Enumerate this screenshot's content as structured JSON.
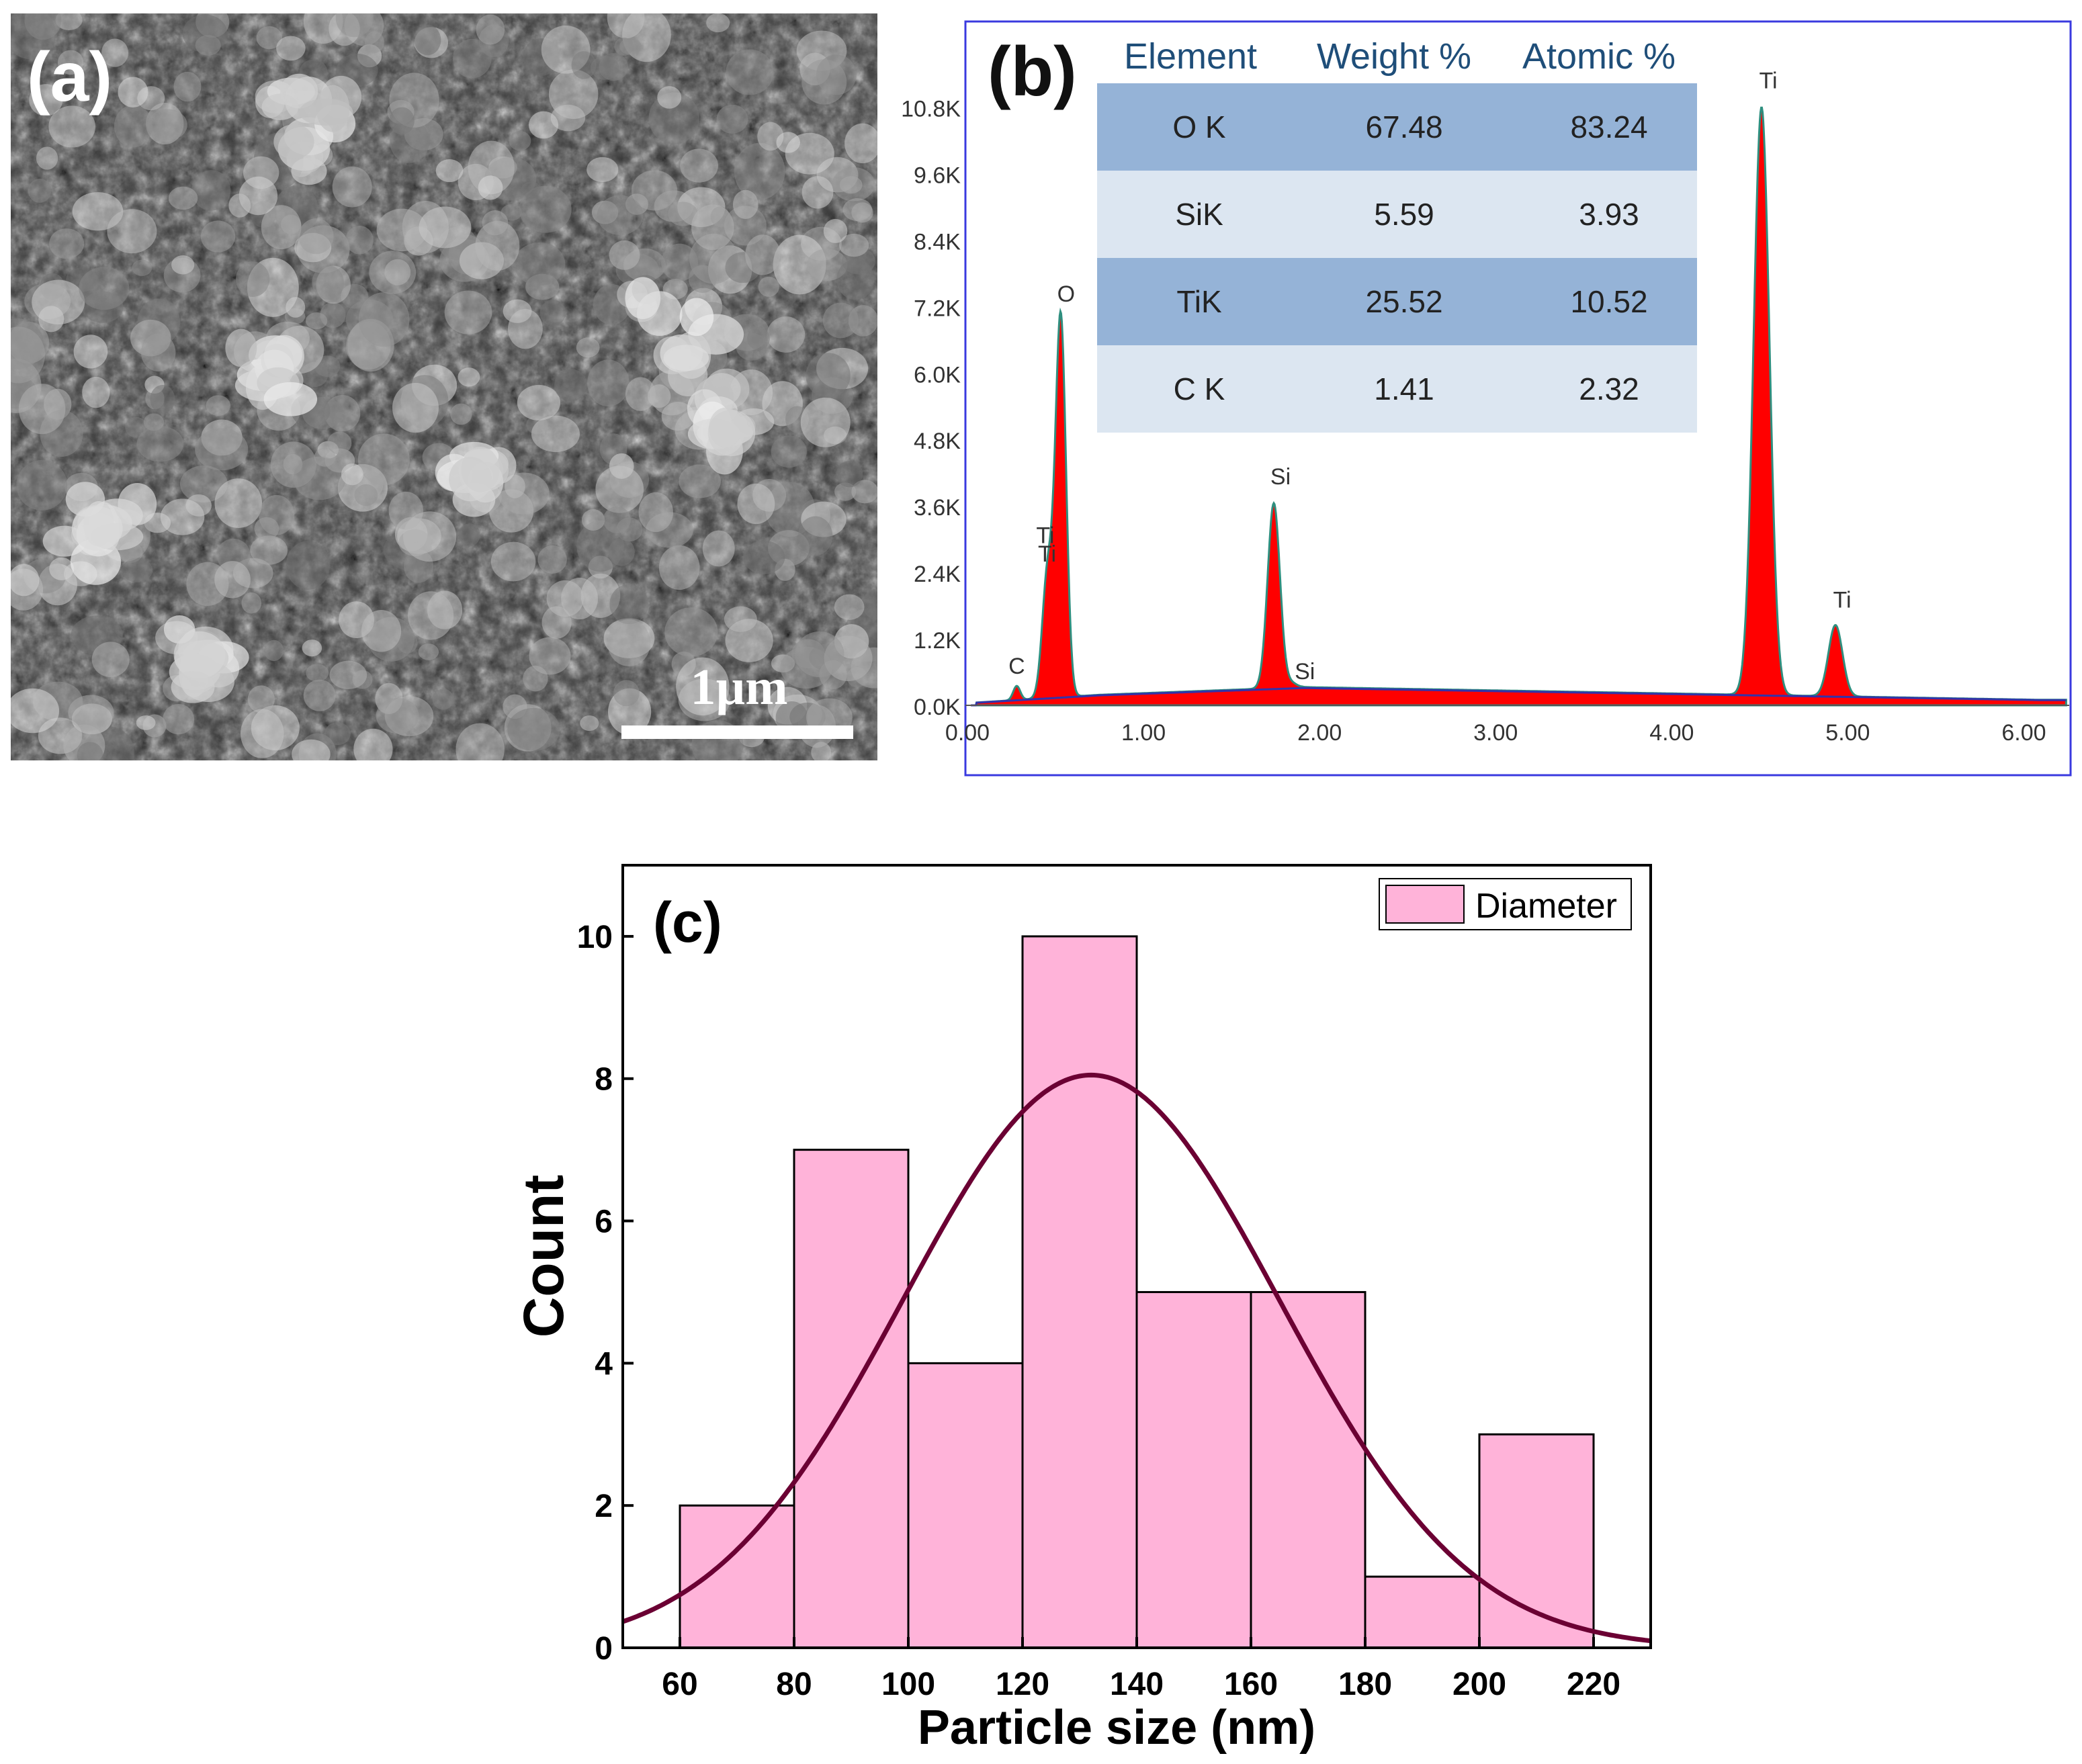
{
  "panel_a": {
    "label": "(a)",
    "scale_bar_text": "1µm",
    "image_description_icon": "sem-micrograph"
  },
  "panel_b": {
    "label": "(b)",
    "table": {
      "headers": [
        "Element",
        "Weight %",
        "Atomic %"
      ],
      "rows": [
        [
          "O K",
          "67.48",
          "83.24"
        ],
        [
          "SiK",
          "5.59",
          "3.93"
        ],
        [
          "TiK",
          "25.52",
          "10.52"
        ],
        [
          "C K",
          "1.41",
          "2.32"
        ]
      ]
    },
    "colors": {
      "fill": "#ff0000",
      "header_row": "#95b3d7",
      "light_row": "#dce6f1",
      "header_text": "#1f4e79",
      "frame": "#3a3adf",
      "background_line": "#3333aa"
    }
  },
  "chart_data": [
    {
      "type": "area",
      "title": "",
      "xlabel": "",
      "ylabel": "",
      "xlim": [
        0.0,
        6.25
      ],
      "ylim": [
        0.0,
        11.4
      ],
      "x_ticks": [
        "0.00",
        "1.00",
        "2.00",
        "3.00",
        "4.00",
        "5.00",
        "6.00"
      ],
      "y_ticks": [
        "0.0K",
        "1.2K",
        "2.4K",
        "3.6K",
        "4.8K",
        "6.0K",
        "7.2K",
        "8.4K",
        "9.6K",
        "10.8K"
      ],
      "y_tick_values": [
        0,
        1.2,
        2.4,
        3.6,
        4.8,
        6.0,
        7.2,
        8.4,
        9.6,
        10.8
      ],
      "x_tick_values": [
        0,
        1,
        2,
        3,
        4,
        5,
        6
      ],
      "peaks": [
        {
          "label": "C",
          "x": 0.28,
          "y": 0.35
        },
        {
          "label": "Ti",
          "x": 0.45,
          "y": 2.3
        },
        {
          "label": "Ti",
          "x": 0.46,
          "y": 2.5
        },
        {
          "label": "O",
          "x": 0.53,
          "y": 7.0
        },
        {
          "label": "Si",
          "x": 1.74,
          "y": 3.65
        },
        {
          "label": "Si",
          "x": 1.84,
          "y": 0.4
        },
        {
          "label": "Ti",
          "x": 4.51,
          "y": 10.8
        },
        {
          "label": "Ti",
          "x": 4.93,
          "y": 1.45
        }
      ],
      "peak_labels": [
        "C",
        "Ti",
        "Ti",
        "O",
        "Si",
        "Si",
        "Ti",
        "Ti"
      ]
    },
    {
      "type": "bar",
      "title": "(c)",
      "xlabel": "Particle size (nm)",
      "ylabel": "Count",
      "xlim": [
        50,
        230
      ],
      "ylim": [
        0,
        11
      ],
      "x_ticks": [
        "60",
        "80",
        "100",
        "120",
        "140",
        "160",
        "180",
        "200",
        "220"
      ],
      "x_tick_values": [
        60,
        80,
        100,
        120,
        140,
        160,
        180,
        200,
        220
      ],
      "y_ticks": [
        "0",
        "2",
        "4",
        "6",
        "8",
        "10"
      ],
      "y_tick_values": [
        0,
        2,
        4,
        6,
        8,
        10
      ],
      "bins": [
        [
          60,
          80
        ],
        [
          80,
          100
        ],
        [
          100,
          120
        ],
        [
          120,
          140
        ],
        [
          140,
          160
        ],
        [
          160,
          180
        ],
        [
          180,
          200
        ],
        [
          200,
          220
        ]
      ],
      "values": [
        2,
        7,
        4,
        10,
        5,
        5,
        1,
        3
      ],
      "legend": [
        "Diameter"
      ],
      "legend_position": "top-right",
      "fit": {
        "type": "gaussian",
        "mean": 132,
        "sigma": 33,
        "amplitude": 8.05
      },
      "colors": {
        "bar": "#ffb3d9",
        "fit": "#6b0033"
      }
    }
  ]
}
